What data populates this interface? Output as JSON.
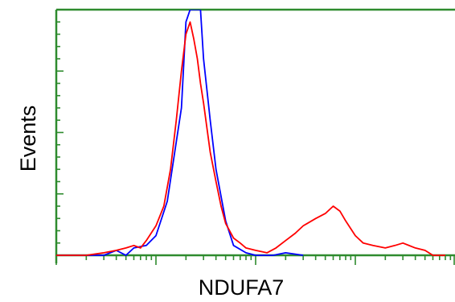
{
  "chart_data": {
    "type": "line",
    "title": "",
    "xlabel": "NDUFA7",
    "ylabel": "Events",
    "x_scale": "log",
    "xlim": [
      1,
      10000
    ],
    "ylim": [
      0,
      100
    ],
    "tick_labels_shown": false,
    "grid": false,
    "legend": "none",
    "axis_color": "#2e8b2e",
    "series": [
      {
        "color": "#0000ff",
        "x": [
          1,
          3,
          4,
          5,
          6,
          8,
          10,
          13,
          18,
          20,
          22,
          25,
          28,
          30,
          35,
          40,
          50,
          60,
          80,
          100,
          150,
          200,
          300
        ],
        "values": [
          0,
          0,
          2,
          0,
          3,
          4,
          8,
          22,
          60,
          95,
          100,
          100,
          100,
          80,
          55,
          35,
          14,
          4,
          1,
          0,
          0,
          1,
          0
        ]
      },
      {
        "color": "#ff0000",
        "x": [
          1,
          2,
          3,
          4,
          5,
          6,
          7,
          8,
          10,
          12,
          14,
          16,
          18,
          20,
          22,
          24,
          26,
          28,
          30,
          35,
          40,
          45,
          50,
          60,
          70,
          80,
          100,
          130,
          160,
          200,
          250,
          300,
          400,
          500,
          600,
          700,
          800,
          1000,
          1200,
          1500,
          2000,
          2500,
          3000,
          4000,
          5000,
          6000,
          7000,
          8000
        ],
        "values": [
          0,
          0,
          1,
          2,
          3,
          4,
          3,
          6,
          12,
          20,
          35,
          55,
          75,
          90,
          95,
          88,
          80,
          70,
          62,
          42,
          30,
          20,
          13,
          7,
          5,
          3,
          2,
          1,
          3,
          6,
          9,
          12,
          15,
          17,
          20,
          18,
          14,
          8,
          5,
          4,
          3,
          4,
          5,
          3,
          2,
          0,
          0,
          0
        ]
      }
    ]
  }
}
